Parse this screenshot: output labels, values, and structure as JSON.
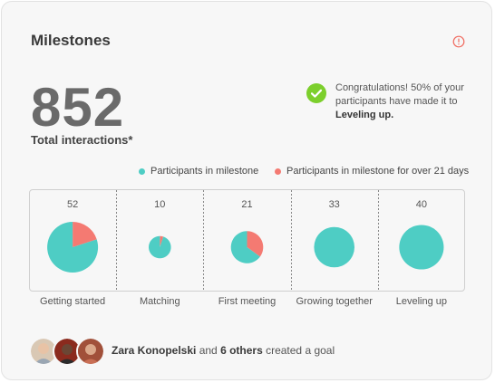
{
  "header": {
    "title": "Milestones",
    "info_icon": "info-icon"
  },
  "stats": {
    "total_value": "852",
    "total_label": "Total interactions*"
  },
  "notice": {
    "icon": "check-circle-icon",
    "text_prefix": "Congratulations! 50% of your participants have made it to ",
    "text_bold": "Leveling up."
  },
  "colors": {
    "teal": "#4ecdc4",
    "coral": "#f47a72",
    "check_green": "#7ccf2c",
    "info_red": "#f06a5f"
  },
  "chart_data": {
    "type": "pie",
    "legend": [
      "Participants in milestone",
      "Participants in milestone for over 21 days"
    ],
    "legend_position": "top-right",
    "categories": [
      "Getting started",
      "Matching",
      "First meeting",
      "Growing together",
      "Leveling up"
    ],
    "totals": [
      52,
      10,
      21,
      33,
      40
    ],
    "segments": [
      {
        "in_milestone": 0.8,
        "over_21_days": 0.2
      },
      {
        "in_milestone": 0.95,
        "over_21_days": 0.05
      },
      {
        "in_milestone": 0.65,
        "over_21_days": 0.35
      },
      {
        "in_milestone": 1.0,
        "over_21_days": 0.0
      },
      {
        "in_milestone": 1.0,
        "over_21_days": 0.0
      }
    ]
  },
  "footer": {
    "avatars": [
      "avatar-1",
      "avatar-2",
      "avatar-3"
    ],
    "name": "Zara Konopelski",
    "and_text": " and ",
    "others": "6 others",
    "action": " created a goal"
  }
}
